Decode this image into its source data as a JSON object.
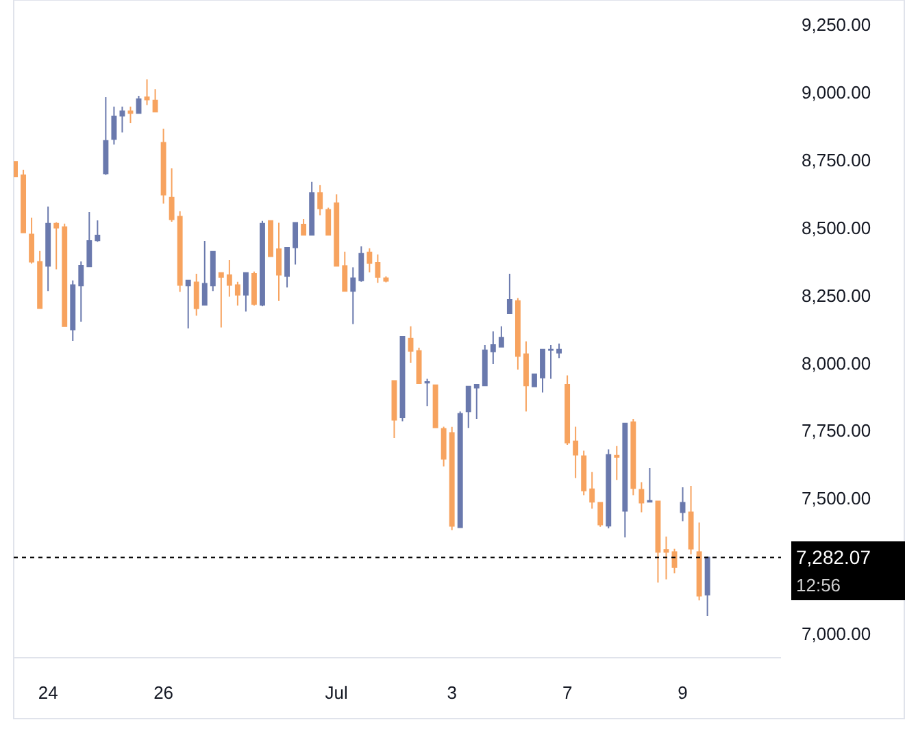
{
  "chart_data": {
    "type": "candlestick",
    "categories": [
      null,
      null,
      null,
      null,
      "24",
      null,
      null,
      null,
      null,
      null,
      null,
      null,
      null,
      null,
      null,
      null,
      null,
      null,
      "26",
      null,
      null,
      null,
      null,
      null,
      null,
      null,
      null,
      null,
      null,
      null,
      null,
      null,
      null,
      null,
      null,
      null,
      null,
      null,
      null,
      "Jul",
      null,
      null,
      null,
      null,
      null,
      null,
      null,
      null,
      null,
      null,
      null,
      null,
      null,
      "3",
      null,
      null,
      null,
      null,
      null,
      null,
      null,
      null,
      null,
      null,
      null,
      null,
      null,
      "7",
      null,
      null,
      null,
      null,
      null,
      null,
      null,
      null,
      null,
      null,
      null,
      null,
      null,
      "9",
      null,
      null,
      null
    ],
    "ohlc": [
      [
        8744,
        8744,
        8689,
        8689
      ],
      [
        8694,
        8714,
        8482,
        8482
      ],
      [
        8475,
        8537,
        8367,
        8374
      ],
      [
        8374,
        8414,
        8203,
        8203
      ],
      [
        8359,
        8578,
        8266,
        8515
      ],
      [
        8515,
        8520,
        8346,
        8500
      ],
      [
        8502,
        8515,
        8136,
        8136
      ],
      [
        8124,
        8305,
        8082,
        8288
      ],
      [
        8286,
        8375,
        8153,
        8360
      ],
      [
        8357,
        8557,
        8357,
        8451
      ],
      [
        8453,
        8527,
        8448,
        8471
      ],
      [
        8700,
        8982,
        8695,
        8821
      ],
      [
        8827,
        8947,
        8807,
        8911
      ],
      [
        8913,
        8947,
        8852,
        8930
      ],
      [
        8930,
        8947,
        8886,
        8923
      ],
      [
        8923,
        8987,
        8923,
        8975
      ],
      [
        8982,
        9048,
        8953,
        8973
      ],
      [
        8970,
        9012,
        8928,
        8928
      ],
      [
        8814,
        8866,
        8589,
        8622
      ],
      [
        8611,
        8719,
        8522,
        8531
      ],
      [
        8541,
        8561,
        8263,
        8288
      ],
      [
        8286,
        8305,
        8128,
        8305
      ],
      [
        8298,
        8330,
        8175,
        8202
      ],
      [
        8215,
        8451,
        8215,
        8293
      ],
      [
        8286,
        8411,
        8266,
        8411
      ],
      [
        8333,
        8333,
        8131,
        8318
      ],
      [
        8325,
        8380,
        8245,
        8288
      ],
      [
        8288,
        8300,
        8212,
        8252
      ],
      [
        8252,
        8333,
        8190,
        8333
      ],
      [
        8330,
        8338,
        8212,
        8217
      ],
      [
        8215,
        8525,
        8210,
        8515
      ],
      [
        8525,
        8525,
        8394,
        8394
      ],
      [
        8421,
        8518,
        8229,
        8326
      ],
      [
        8321,
        8426,
        8279,
        8426
      ],
      [
        8427,
        8518,
        8364,
        8518
      ],
      [
        8512,
        8532,
        8473,
        8473
      ],
      [
        8473,
        8669,
        8473,
        8628
      ],
      [
        8628,
        8658,
        8546,
        8571
      ],
      [
        8566,
        8574,
        8473,
        8473
      ],
      [
        8591,
        8623,
        8359,
        8359
      ],
      [
        8359,
        8411,
        8266,
        8266
      ],
      [
        8266,
        8354,
        8144,
        8313
      ],
      [
        8305,
        8431,
        8300,
        8404
      ],
      [
        8409,
        8424,
        8335,
        8369
      ],
      [
        8370,
        8401,
        8296,
        8318
      ],
      [
        8313,
        8320,
        8298,
        8303
      ],
      [
        7934,
        7934,
        7723,
        7790
      ],
      [
        7799,
        8097,
        7785,
        8097
      ],
      [
        8090,
        8136,
        8001,
        8045
      ],
      [
        8045,
        8057,
        7925,
        7925
      ],
      [
        7927,
        7942,
        7841,
        7930
      ],
      [
        7918,
        7918,
        7762,
        7762
      ],
      [
        7757,
        7765,
        7618,
        7646
      ],
      [
        7742,
        7764,
        7383,
        7398
      ],
      [
        7393,
        7821,
        7393,
        7813
      ],
      [
        7821,
        7913,
        7760,
        7913
      ],
      [
        7909,
        7920,
        7794,
        7920
      ],
      [
        7917,
        8067,
        7917,
        8047
      ],
      [
        8043,
        8117,
        7996,
        8067
      ],
      [
        8060,
        8136,
        8060,
        8094
      ],
      [
        8183,
        8330,
        8183,
        8234
      ],
      [
        8229,
        8240,
        7976,
        8026
      ],
      [
        8033,
        8080,
        7821,
        7917
      ],
      [
        7913,
        7959,
        7913,
        7959
      ],
      [
        7946,
        8050,
        7891,
        8050
      ],
      [
        8048,
        8067,
        7942,
        8050
      ],
      [
        8038,
        8072,
        8018,
        8050
      ],
      [
        7920,
        7954,
        7698,
        7706
      ],
      [
        7711,
        7765,
        7575,
        7661
      ],
      [
        7656,
        7676,
        7512,
        7529
      ],
      [
        7534,
        7597,
        7462,
        7487
      ],
      [
        7484,
        7484,
        7395,
        7403
      ],
      [
        7399,
        7681,
        7389,
        7661
      ],
      [
        7658,
        7693,
        7568,
        7653
      ],
      [
        7454,
        7777,
        7356,
        7777
      ],
      [
        7782,
        7794,
        7512,
        7538
      ],
      [
        7532,
        7560,
        7449,
        7484
      ],
      [
        7487,
        7612,
        7487,
        7491
      ],
      [
        7489,
        7489,
        7189,
        7302
      ],
      [
        7310,
        7359,
        7201,
        7302
      ],
      [
        7302,
        7314,
        7224,
        7246
      ],
      [
        7449,
        7541,
        7416,
        7484
      ],
      [
        7449,
        7546,
        7293,
        7314
      ],
      [
        7302,
        7411,
        7123,
        7140
      ],
      [
        7144,
        7285,
        7066,
        7282.07
      ]
    ],
    "colors": [
      "#f7a35f",
      "#f7a35f",
      "#f7a35f",
      "#f7a35f",
      "#6a79ad",
      "#f7a35f",
      "#f7a35f",
      "#6a79ad",
      "#6a79ad",
      "#6a79ad",
      "#6a79ad",
      "#6a79ad",
      "#6a79ad",
      "#6a79ad",
      "#f7a35f",
      "#6a79ad",
      "#f7a35f",
      "#f7a35f",
      "#f7a35f",
      "#f7a35f",
      "#f7a35f",
      "#6a79ad",
      "#f7a35f",
      "#6a79ad",
      "#6a79ad",
      "#f7a35f",
      "#f7a35f",
      "#f7a35f",
      "#6a79ad",
      "#f7a35f",
      "#6a79ad",
      "#f7a35f",
      "#f7a35f",
      "#6a79ad",
      "#6a79ad",
      "#f7a35f",
      "#6a79ad",
      "#f7a35f",
      "#f7a35f",
      "#f7a35f",
      "#f7a35f",
      "#6a79ad",
      "#6a79ad",
      "#f7a35f",
      "#f7a35f",
      "#f7a35f",
      "#f7a35f",
      "#6a79ad",
      "#f7a35f",
      "#f7a35f",
      "#6a79ad",
      "#f7a35f",
      "#f7a35f",
      "#f7a35f",
      "#6a79ad",
      "#6a79ad",
      "#6a79ad",
      "#6a79ad",
      "#6a79ad",
      "#6a79ad",
      "#6a79ad",
      "#f7a35f",
      "#f7a35f",
      "#6a79ad",
      "#6a79ad",
      "#6a79ad",
      "#6a79ad",
      "#f7a35f",
      "#f7a35f",
      "#f7a35f",
      "#f7a35f",
      "#f7a35f",
      "#6a79ad",
      "#f7a35f",
      "#6a79ad",
      "#f7a35f",
      "#f7a35f",
      "#6a79ad",
      "#f7a35f",
      "#f7a35f",
      "#f7a35f",
      "#6a79ad",
      "#f7a35f",
      "#f7a35f",
      "#6a79ad"
    ],
    "ylim": [
      6914,
      9341
    ],
    "yticks": [
      {
        "value": 7000,
        "label": "7,000.00"
      },
      {
        "value": 7500,
        "label": "7,500.00"
      },
      {
        "value": 7750,
        "label": "7,750.00"
      },
      {
        "value": 8000,
        "label": "8,000.00"
      },
      {
        "value": 8250,
        "label": "8,250.00"
      },
      {
        "value": 8500,
        "label": "8,500.00"
      },
      {
        "value": 8750,
        "label": "8,750.00"
      },
      {
        "value": 9000,
        "label": "9,000.00"
      },
      {
        "value": 9250,
        "label": "9,250.00"
      }
    ],
    "ref_lines": [
      {
        "axis": "y",
        "value": 7282.07,
        "label": "7,282.07",
        "color": "#000000",
        "line_style": "dotted"
      }
    ],
    "annotations": [
      "12:56"
    ],
    "grid": false
  }
}
